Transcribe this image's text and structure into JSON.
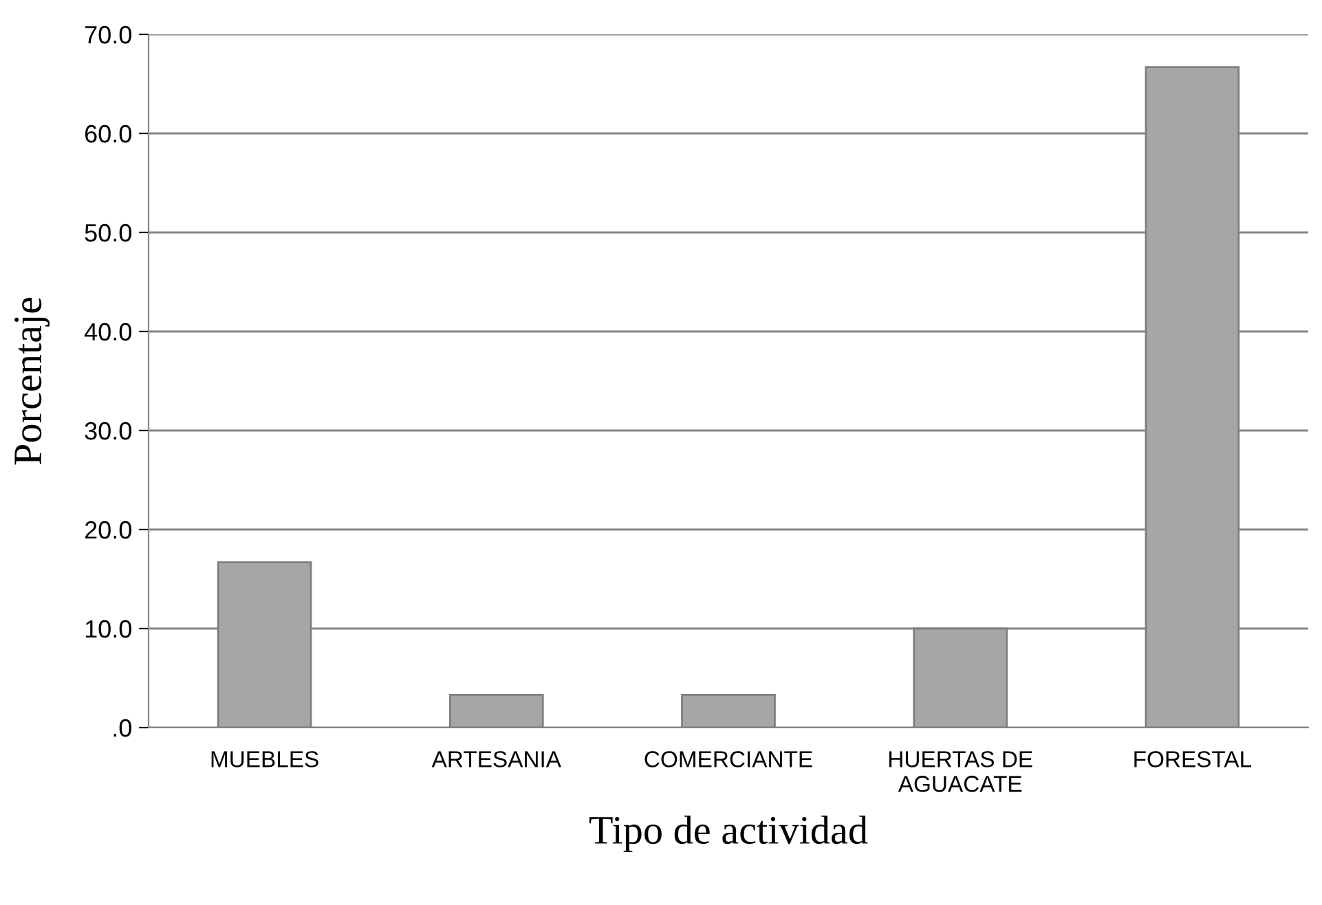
{
  "chart_data": {
    "type": "bar",
    "xlabel": "Tipo de actividad",
    "ylabel": "Porcentaje",
    "categories": [
      "MUEBLES",
      "ARTESANIA",
      "COMERCIANTE",
      "HUERTAS DE\nAGUACATE",
      "FORESTAL"
    ],
    "values": [
      16.7,
      3.3,
      3.3,
      10.0,
      66.7
    ],
    "color": "#a6a6a6",
    "ylim": [
      0,
      70
    ],
    "yticks": [
      {
        "value": 0,
        "label": ".0"
      },
      {
        "value": 10,
        "label": "10.0"
      },
      {
        "value": 20,
        "label": "20.0"
      },
      {
        "value": 30,
        "label": "30.0"
      },
      {
        "value": 40,
        "label": "40.0"
      },
      {
        "value": 50,
        "label": "50.0"
      },
      {
        "value": 60,
        "label": "60.0"
      },
      {
        "value": 70,
        "label": "70.0"
      }
    ],
    "grid": "y",
    "legend": false
  }
}
